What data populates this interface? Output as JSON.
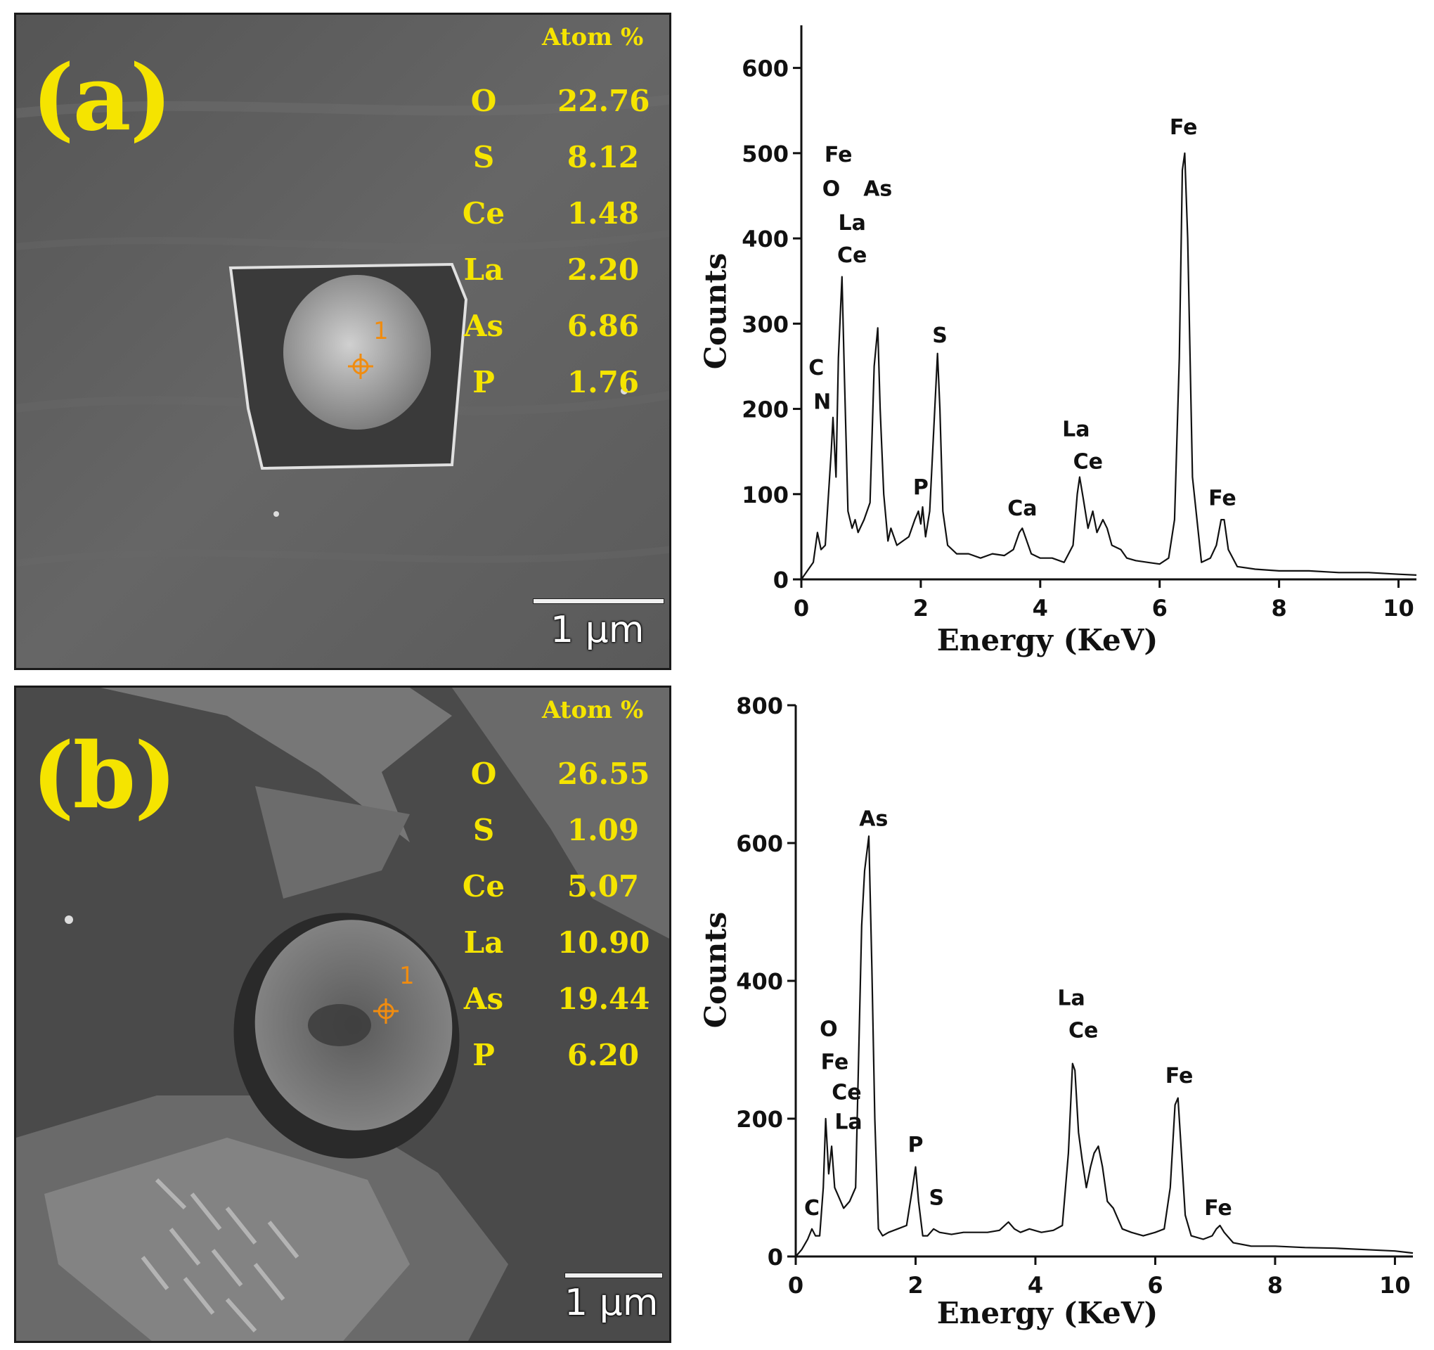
{
  "panels": [
    {
      "label": "(a)",
      "atom_title": "Atom %",
      "atoms": [
        {
          "element": "O",
          "value": "22.76"
        },
        {
          "element": "S",
          "value": "8.12"
        },
        {
          "element": "Ce",
          "value": "1.48"
        },
        {
          "element": "La",
          "value": "2.20"
        },
        {
          "element": "As",
          "value": "6.86"
        },
        {
          "element": "P",
          "value": "1.76"
        }
      ],
      "point_label": "1",
      "scale_label": "1 µm"
    },
    {
      "label": "(b)",
      "atom_title": "Atom %",
      "atoms": [
        {
          "element": "O",
          "value": "26.55"
        },
        {
          "element": "S",
          "value": "1.09"
        },
        {
          "element": "Ce",
          "value": "5.07"
        },
        {
          "element": "La",
          "value": "10.90"
        },
        {
          "element": "As",
          "value": "19.44"
        },
        {
          "element": "P",
          "value": "6.20"
        }
      ],
      "point_label": "1",
      "scale_label": "1 µm"
    }
  ],
  "chart_data": [
    {
      "type": "line",
      "xlabel": "Energy (KeV)",
      "ylabel": "Counts",
      "xlim": [
        0,
        10.3
      ],
      "ylim": [
        0,
        650
      ],
      "xticks": [
        0,
        2,
        4,
        6,
        8,
        10
      ],
      "yticks": [
        0,
        100,
        200,
        300,
        400,
        500,
        600
      ],
      "series": [
        {
          "x": [
            0,
            0.1,
            0.2,
            0.27,
            0.33,
            0.4,
            0.5,
            0.53,
            0.58,
            0.62,
            0.68,
            0.72,
            0.78,
            0.85,
            0.9,
            0.95,
            1.05,
            1.15,
            1.22,
            1.28,
            1.32,
            1.38,
            1.45,
            1.5,
            1.6,
            1.7,
            1.8,
            1.9,
            1.96,
            2.0,
            2.03,
            2.08,
            2.15,
            2.22,
            2.28,
            2.32,
            2.37,
            2.45,
            2.6,
            2.8,
            3.0,
            3.2,
            3.4,
            3.55,
            3.65,
            3.7,
            3.75,
            3.85,
            4.0,
            4.2,
            4.4,
            4.55,
            4.62,
            4.66,
            4.72,
            4.8,
            4.88,
            4.95,
            5.05,
            5.12,
            5.2,
            5.35,
            5.45,
            5.6,
            5.8,
            6.0,
            6.15,
            6.25,
            6.33,
            6.38,
            6.42,
            6.47,
            6.55,
            6.7,
            6.85,
            6.95,
            7.03,
            7.08,
            7.15,
            7.3,
            7.6,
            8.0,
            8.5,
            9.0,
            9.5,
            10.0,
            10.3
          ],
          "y": [
            0,
            10,
            20,
            55,
            35,
            40,
            150,
            190,
            120,
            260,
            355,
            240,
            80,
            60,
            70,
            55,
            70,
            90,
            250,
            295,
            200,
            100,
            45,
            60,
            40,
            45,
            50,
            70,
            80,
            65,
            85,
            50,
            80,
            180,
            265,
            200,
            80,
            40,
            30,
            30,
            25,
            30,
            28,
            35,
            55,
            60,
            50,
            30,
            25,
            25,
            20,
            40,
            100,
            120,
            95,
            60,
            80,
            55,
            70,
            60,
            40,
            35,
            25,
            22,
            20,
            18,
            25,
            70,
            260,
            480,
            500,
            400,
            120,
            20,
            25,
            40,
            70,
            70,
            35,
            15,
            12,
            10,
            10,
            8,
            8,
            6,
            5
          ]
        }
      ],
      "annotations": [
        {
          "text": "Fe",
          "x": 0.62,
          "y": 490
        },
        {
          "text": "O",
          "x": 0.5,
          "y": 450
        },
        {
          "text": "As",
          "x": 1.28,
          "y": 450
        },
        {
          "text": "La",
          "x": 0.85,
          "y": 410
        },
        {
          "text": "Ce",
          "x": 0.85,
          "y": 372
        },
        {
          "text": "C",
          "x": 0.25,
          "y": 240
        },
        {
          "text": "N",
          "x": 0.35,
          "y": 200
        },
        {
          "text": "S",
          "x": 2.32,
          "y": 278
        },
        {
          "text": "P",
          "x": 2.0,
          "y": 100
        },
        {
          "text": "Ca",
          "x": 3.7,
          "y": 75
        },
        {
          "text": "La",
          "x": 4.6,
          "y": 168
        },
        {
          "text": "Ce",
          "x": 4.8,
          "y": 130
        },
        {
          "text": "Fe",
          "x": 6.4,
          "y": 522
        },
        {
          "text": "Fe",
          "x": 7.05,
          "y": 87
        }
      ]
    },
    {
      "type": "line",
      "xlabel": "Energy (KeV)",
      "ylabel": "Counts",
      "xlim": [
        0,
        10.3
      ],
      "ylim": [
        0,
        800
      ],
      "xticks": [
        0,
        2,
        4,
        6,
        8,
        10
      ],
      "yticks": [
        0,
        200,
        400,
        600,
        800
      ],
      "series": [
        {
          "x": [
            0,
            0.1,
            0.2,
            0.27,
            0.33,
            0.4,
            0.46,
            0.5,
            0.55,
            0.6,
            0.65,
            0.7,
            0.8,
            0.9,
            1.0,
            1.1,
            1.15,
            1.22,
            1.27,
            1.32,
            1.38,
            1.45,
            1.55,
            1.7,
            1.85,
            1.95,
            2.0,
            2.05,
            2.12,
            2.2,
            2.3,
            2.4,
            2.6,
            2.8,
            3.0,
            3.2,
            3.4,
            3.55,
            3.65,
            3.75,
            3.9,
            4.1,
            4.3,
            4.45,
            4.55,
            4.62,
            4.66,
            4.72,
            4.78,
            4.85,
            4.92,
            4.98,
            5.05,
            5.12,
            5.2,
            5.3,
            5.45,
            5.6,
            5.8,
            6.0,
            6.15,
            6.25,
            6.33,
            6.38,
            6.43,
            6.5,
            6.6,
            6.8,
            6.95,
            7.02,
            7.08,
            7.15,
            7.3,
            7.6,
            8.0,
            8.5,
            9.0,
            9.5,
            10.0,
            10.3
          ],
          "y": [
            0,
            10,
            25,
            40,
            30,
            30,
            100,
            200,
            120,
            160,
            100,
            90,
            70,
            80,
            100,
            480,
            560,
            610,
            420,
            200,
            40,
            30,
            35,
            40,
            45,
            100,
            130,
            80,
            30,
            30,
            40,
            35,
            32,
            35,
            35,
            35,
            38,
            50,
            40,
            35,
            40,
            35,
            38,
            45,
            150,
            280,
            270,
            180,
            140,
            100,
            130,
            150,
            160,
            130,
            80,
            70,
            40,
            35,
            30,
            35,
            40,
            100,
            220,
            230,
            160,
            60,
            30,
            25,
            30,
            40,
            45,
            35,
            20,
            15,
            15,
            13,
            12,
            10,
            8,
            5
          ]
        }
      ],
      "annotations": [
        {
          "text": "As",
          "x": 1.3,
          "y": 625
        },
        {
          "text": "O",
          "x": 0.55,
          "y": 320
        },
        {
          "text": "Fe",
          "x": 0.65,
          "y": 272
        },
        {
          "text": "Ce",
          "x": 0.85,
          "y": 228
        },
        {
          "text": "La",
          "x": 0.88,
          "y": 185
        },
        {
          "text": "C",
          "x": 0.27,
          "y": 60
        },
        {
          "text": "P",
          "x": 2.0,
          "y": 152
        },
        {
          "text": "S",
          "x": 2.35,
          "y": 75
        },
        {
          "text": "La",
          "x": 4.6,
          "y": 365
        },
        {
          "text": "Ce",
          "x": 4.8,
          "y": 318
        },
        {
          "text": "Fe",
          "x": 6.4,
          "y": 252
        },
        {
          "text": "Fe",
          "x": 7.05,
          "y": 60
        }
      ]
    }
  ]
}
